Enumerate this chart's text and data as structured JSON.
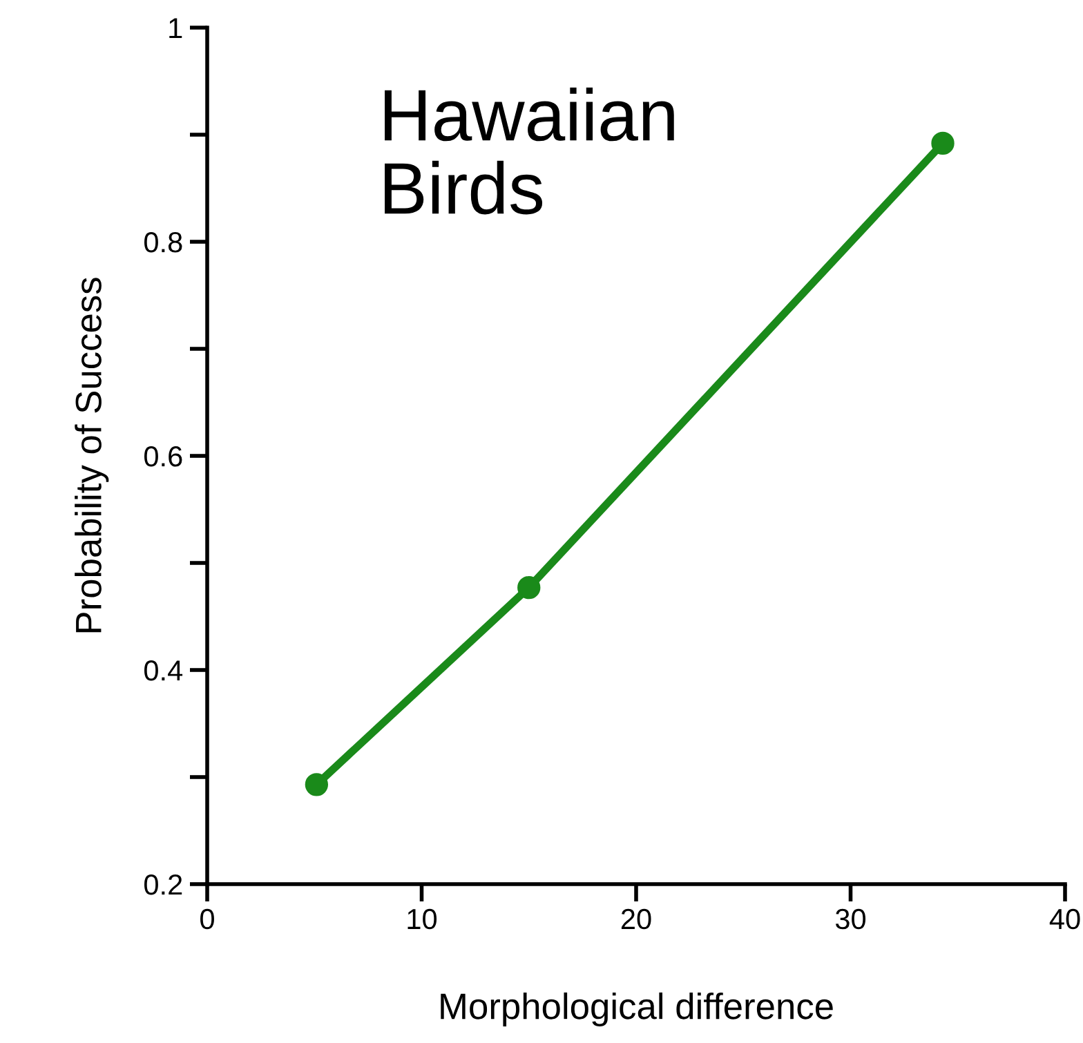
{
  "chart_data": {
    "type": "line",
    "title": "Hawaiian\nBirds",
    "xlabel": "Morphological difference",
    "ylabel": "Probability of Success",
    "x": [
      5.1,
      15.0,
      34.3
    ],
    "series": [
      {
        "color": "#1a8a1a",
        "values": [
          0.293,
          0.477,
          0.892
        ]
      }
    ],
    "marker": "circle",
    "line_style": "solid",
    "grid": false,
    "xlim": [
      0,
      40
    ],
    "xticks": [
      0,
      10,
      20,
      30,
      40
    ],
    "ylim": [
      0.2,
      1
    ],
    "yticks": [
      0.2,
      {
        "value": 0.3,
        "label": null
      },
      0.4,
      {
        "value": 0.5,
        "label": null
      },
      0.6,
      {
        "value": 0.7,
        "label": null
      },
      0.8,
      {
        "value": 0.9,
        "label": null
      },
      1
    ]
  }
}
